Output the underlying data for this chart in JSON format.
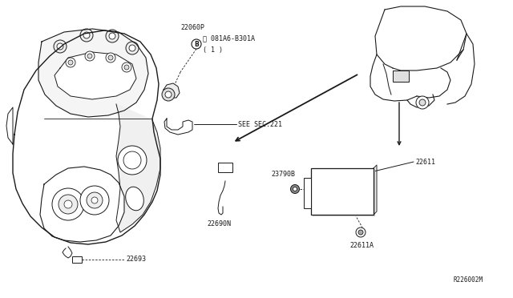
{
  "bg_color": "#ffffff",
  "line_color": "#1a1a1a",
  "fig_width": 6.4,
  "fig_height": 3.72,
  "dpi": 100,
  "labels": {
    "bolt_ref_line1": "Ⓑ 081A6-B301A",
    "bolt_ref_line2": "( 1 )",
    "part_22060P": "22060P",
    "see_sec": "SEE SEC.221",
    "part_22693": "22693",
    "part_22690N": "22690N",
    "part_23790B": "23790B",
    "part_22611": "22611",
    "part_22611A": "22611A",
    "ref_code": "R226002M"
  },
  "font_size": 6.0,
  "font_size_ref": 5.5
}
